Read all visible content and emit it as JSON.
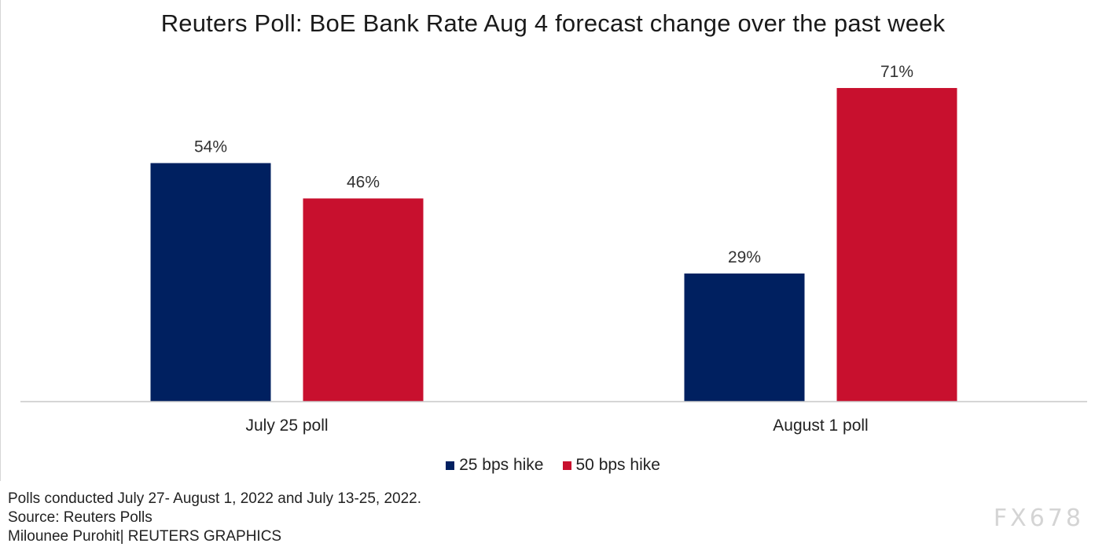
{
  "chart_data": {
    "type": "bar",
    "title": "Reuters Poll: BoE Bank Rate Aug 4 forecast change over the past week",
    "categories": [
      "July 25 poll",
      "August 1 poll"
    ],
    "series": [
      {
        "name": "25 bps hike",
        "values": [
          54,
          29
        ],
        "labels": [
          "54%",
          "29%"
        ],
        "color": "#002060"
      },
      {
        "name": "50 bps hike",
        "values": [
          46,
          71
        ],
        "labels": [
          "46%",
          "71%"
        ],
        "color": "#c8102e"
      }
    ],
    "ylim": [
      0,
      80
    ],
    "grid": false,
    "legend": "bottom-center",
    "value_suffix": "%"
  },
  "notes": {
    "line1": "Polls conducted July 27- August 1, 2022 and July 13-25, 2022.",
    "line2": "Source: Reuters Polls",
    "line3": "Milounee Purohit| REUTERS GRAPHICS"
  },
  "watermark": "FX678"
}
